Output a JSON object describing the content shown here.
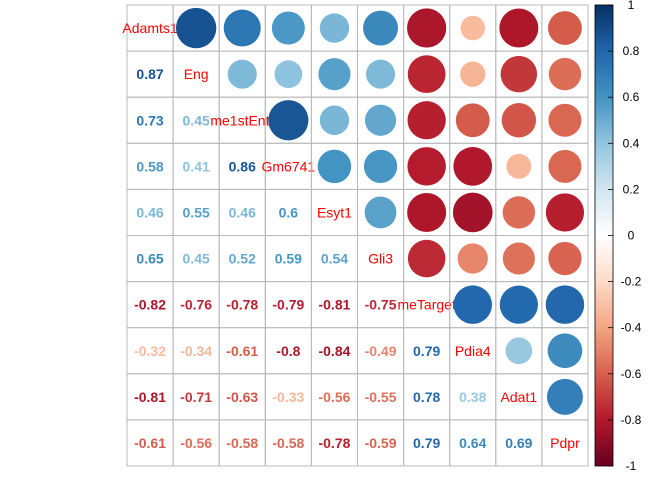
{
  "chart_data": {
    "type": "heatmap",
    "variables": [
      "Adamts1",
      "Eng",
      "me1stEntr",
      "Gm6741",
      "Esyt1",
      "Gli3",
      "meTarget",
      "Pdia4",
      "Adat1",
      "Pdpr"
    ],
    "matrix": [
      [
        1.0,
        0.87,
        0.73,
        0.58,
        0.46,
        0.65,
        -0.82,
        -0.32,
        -0.81,
        -0.61
      ],
      [
        0.87,
        1.0,
        0.45,
        0.41,
        0.55,
        0.45,
        -0.76,
        -0.34,
        -0.71,
        -0.56
      ],
      [
        0.73,
        0.45,
        1.0,
        0.86,
        0.46,
        0.52,
        -0.78,
        -0.61,
        -0.63,
        -0.58
      ],
      [
        0.58,
        0.41,
        0.86,
        1.0,
        0.6,
        0.59,
        -0.79,
        -0.8,
        -0.33,
        -0.58
      ],
      [
        0.46,
        0.55,
        0.46,
        0.6,
        1.0,
        0.54,
        -0.81,
        -0.84,
        -0.56,
        -0.78
      ],
      [
        0.65,
        0.45,
        0.52,
        0.59,
        0.54,
        1.0,
        -0.75,
        -0.49,
        -0.55,
        -0.59
      ],
      [
        -0.82,
        -0.76,
        -0.78,
        -0.79,
        -0.81,
        -0.75,
        1.0,
        0.79,
        0.78,
        0.79
      ],
      [
        -0.32,
        -0.34,
        -0.61,
        -0.8,
        -0.84,
        -0.49,
        0.79,
        1.0,
        0.38,
        0.64
      ],
      [
        -0.81,
        -0.71,
        -0.63,
        -0.33,
        -0.56,
        -0.55,
        0.78,
        0.38,
        1.0,
        0.69
      ],
      [
        -0.61,
        -0.56,
        -0.58,
        -0.58,
        -0.78,
        -0.59,
        0.79,
        0.64,
        0.69,
        1.0
      ]
    ],
    "upper_method": "circle",
    "lower_method": "number",
    "diagonal": "label",
    "color_scale": {
      "range": [
        -1,
        1
      ],
      "ticks": [
        "-1",
        "-0.8",
        "-0.6",
        "-0.4",
        "-0.2",
        "0",
        "0.2",
        "0.4",
        "0.6",
        "0.8",
        "1"
      ],
      "stops": [
        "#67001F",
        "#B2182B",
        "#D6604D",
        "#F4A582",
        "#FDDBC7",
        "#FFFFFF",
        "#D1E5F0",
        "#92C5DE",
        "#4393C3",
        "#2166AC",
        "#053061"
      ]
    },
    "legend": "right",
    "grid": true
  }
}
